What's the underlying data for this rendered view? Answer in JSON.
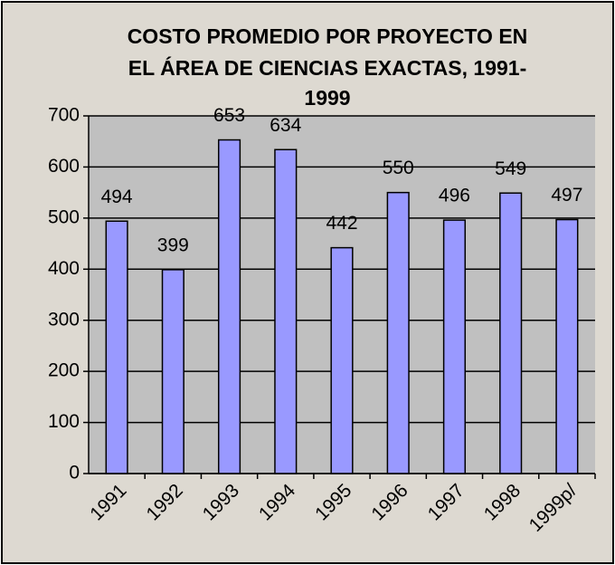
{
  "chart_data": {
    "type": "bar",
    "title": [
      "COSTO PROMEDIO POR PROYECTO EN",
      "EL ÁREA DE CIENCIAS EXACTAS, 1991-",
      "1999"
    ],
    "categories": [
      "1991",
      "1992",
      "1993",
      "1994",
      "1995",
      "1996",
      "1997",
      "1998",
      "1999p/"
    ],
    "values": [
      494,
      399,
      653,
      634,
      442,
      550,
      496,
      549,
      497
    ],
    "color": "#9999ff",
    "ylim": [
      0,
      700
    ],
    "yticks": [
      0,
      100,
      200,
      300,
      400,
      500,
      600,
      700
    ],
    "grid": true
  }
}
